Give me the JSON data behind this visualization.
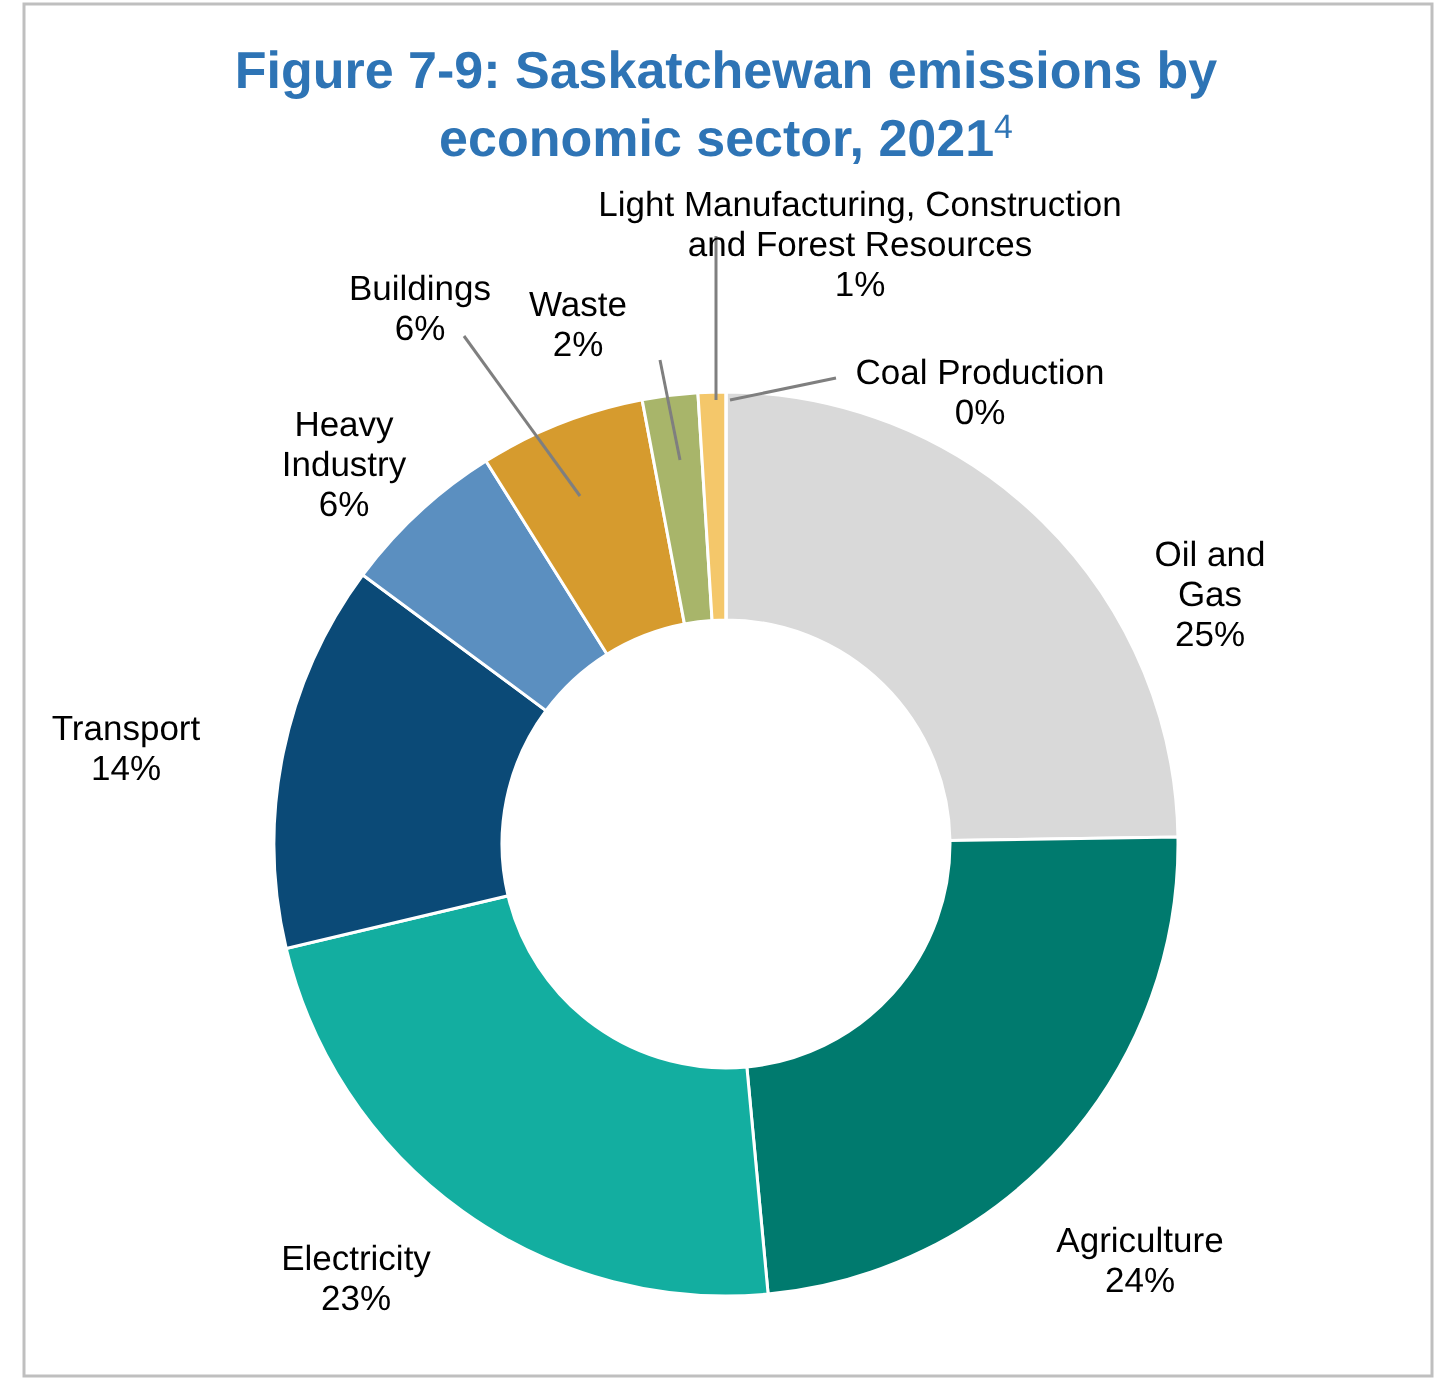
{
  "chart_data": {
    "type": "donut",
    "title": "Figure 7-9: Saskatchewan emissions by economic sector, 2021$^{4}$",
    "categories": [
      "Oil and Gas",
      "Agriculture",
      "Electricity",
      "Transport",
      "Heavy Industry",
      "Buildings",
      "Waste",
      "Light Manufacturing, Construction and Forest Resources",
      "Coal Production"
    ],
    "values": [
      25,
      24,
      23,
      14,
      6,
      6,
      2,
      1,
      0
    ],
    "colors": [
      "#d9d9d9",
      "#007a6e",
      "#13aea0",
      "#0b4a77",
      "#5b8fc0",
      "#d69b2e",
      "#a8b56a",
      "#f4c76a",
      "#f6d590"
    ],
    "value_labels": [
      "25%",
      "24%",
      "23%",
      "14%",
      "6%",
      "6%",
      "2%",
      "1%",
      "0%"
    ]
  }
}
